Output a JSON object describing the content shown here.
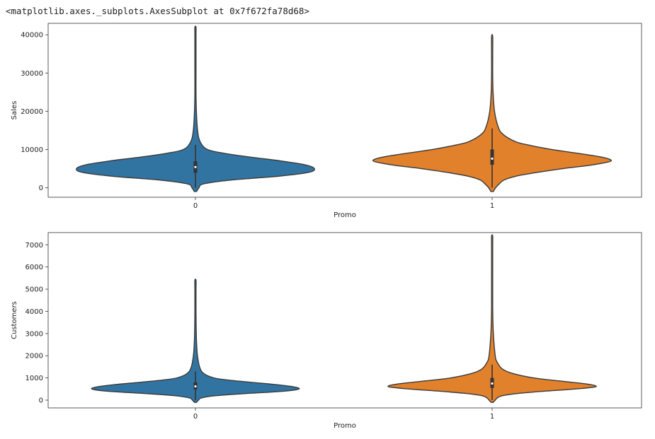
{
  "output_repr": "<matplotlib.axes._subplots.AxesSubplot at 0x7f672fa78d68>",
  "colors": {
    "promo0": "#3274a1",
    "promo1": "#e1812c",
    "edge": "#3a3a3a",
    "box": "#333333"
  },
  "chart_data": [
    {
      "type": "violin",
      "xlabel": "Promo",
      "ylabel": "Sales",
      "categories": [
        "0",
        "1"
      ],
      "ylim": [
        -2500,
        43000
      ],
      "yticks": [
        0,
        10000,
        20000,
        30000,
        40000
      ],
      "ytick_labels": [
        "0",
        "10000",
        "20000",
        "30000",
        "40000"
      ],
      "violins": [
        {
          "category": "0",
          "color_key": "promo0",
          "min": -1000,
          "max": 42000,
          "q1": 3900,
          "median": 5400,
          "q3": 6900,
          "whisker_low": 0,
          "whisker_high": 11200,
          "density": [
            [
              -1000,
              0.01
            ],
            [
              0,
              0.03
            ],
            [
              1000,
              0.07
            ],
            [
              2000,
              0.3
            ],
            [
              3000,
              0.7
            ],
            [
              4000,
              0.95
            ],
            [
              5000,
              1.0
            ],
            [
              6000,
              0.92
            ],
            [
              7000,
              0.72
            ],
            [
              8000,
              0.46
            ],
            [
              9000,
              0.24
            ],
            [
              10000,
              0.1
            ],
            [
              12000,
              0.04
            ],
            [
              15000,
              0.018
            ],
            [
              20000,
              0.008
            ],
            [
              25000,
              0.004
            ],
            [
              30000,
              0.002
            ],
            [
              35000,
              0.0015
            ],
            [
              40000,
              0.001
            ],
            [
              42000,
              0.0005
            ]
          ]
        },
        {
          "category": "1",
          "color_key": "promo1",
          "min": -1000,
          "max": 39500,
          "q1": 6000,
          "median": 7600,
          "q3": 10000,
          "whisker_low": 0,
          "whisker_high": 15500,
          "density": [
            [
              -1000,
              0.01
            ],
            [
              0,
              0.03
            ],
            [
              1000,
              0.06
            ],
            [
              2000,
              0.1
            ],
            [
              3000,
              0.2
            ],
            [
              4000,
              0.38
            ],
            [
              5000,
              0.6
            ],
            [
              6000,
              0.85
            ],
            [
              7000,
              1.0
            ],
            [
              8000,
              0.92
            ],
            [
              9000,
              0.72
            ],
            [
              10000,
              0.5
            ],
            [
              11000,
              0.33
            ],
            [
              12000,
              0.2
            ],
            [
              14000,
              0.09
            ],
            [
              16000,
              0.05
            ],
            [
              20000,
              0.02
            ],
            [
              25000,
              0.008
            ],
            [
              30000,
              0.004
            ],
            [
              35000,
              0.002
            ],
            [
              39500,
              0.0005
            ]
          ]
        }
      ]
    },
    {
      "type": "violin",
      "xlabel": "Promo",
      "ylabel": "Customers",
      "categories": [
        "0",
        "1"
      ],
      "ylim": [
        -350,
        7550
      ],
      "yticks": [
        0,
        1000,
        2000,
        3000,
        4000,
        5000,
        6000,
        7000
      ],
      "ytick_labels": [
        "0",
        "1000",
        "2000",
        "3000",
        "4000",
        "5000",
        "6000",
        "7000"
      ],
      "violins": [
        {
          "category": "0",
          "color_key": "promo0",
          "min": -100,
          "max": 5400,
          "q1": 480,
          "median": 620,
          "q3": 800,
          "whisker_low": 0,
          "whisker_high": 1300,
          "density": [
            [
              -100,
              0.01
            ],
            [
              0,
              0.03
            ],
            [
              100,
              0.06
            ],
            [
              200,
              0.2
            ],
            [
              300,
              0.5
            ],
            [
              400,
              0.85
            ],
            [
              500,
              1.0
            ],
            [
              600,
              0.95
            ],
            [
              700,
              0.78
            ],
            [
              800,
              0.55
            ],
            [
              900,
              0.33
            ],
            [
              1000,
              0.18
            ],
            [
              1200,
              0.08
            ],
            [
              1500,
              0.04
            ],
            [
              2000,
              0.02
            ],
            [
              2500,
              0.012
            ],
            [
              3000,
              0.008
            ],
            [
              4000,
              0.004
            ],
            [
              5000,
              0.002
            ],
            [
              5400,
              0.0005
            ]
          ]
        },
        {
          "category": "1",
          "color_key": "promo1",
          "min": -100,
          "max": 7400,
          "q1": 550,
          "median": 750,
          "q3": 1000,
          "whisker_low": 0,
          "whisker_high": 1600,
          "density": [
            [
              -100,
              0.01
            ],
            [
              0,
              0.03
            ],
            [
              100,
              0.05
            ],
            [
              200,
              0.1
            ],
            [
              300,
              0.25
            ],
            [
              400,
              0.5
            ],
            [
              500,
              0.8
            ],
            [
              600,
              1.0
            ],
            [
              700,
              0.95
            ],
            [
              800,
              0.78
            ],
            [
              900,
              0.58
            ],
            [
              1000,
              0.4
            ],
            [
              1200,
              0.2
            ],
            [
              1400,
              0.1
            ],
            [
              1700,
              0.05
            ],
            [
              2000,
              0.03
            ],
            [
              3000,
              0.012
            ],
            [
              4000,
              0.006
            ],
            [
              5000,
              0.004
            ],
            [
              6000,
              0.002
            ],
            [
              7000,
              0.001
            ],
            [
              7400,
              0.0005
            ]
          ]
        }
      ]
    }
  ]
}
